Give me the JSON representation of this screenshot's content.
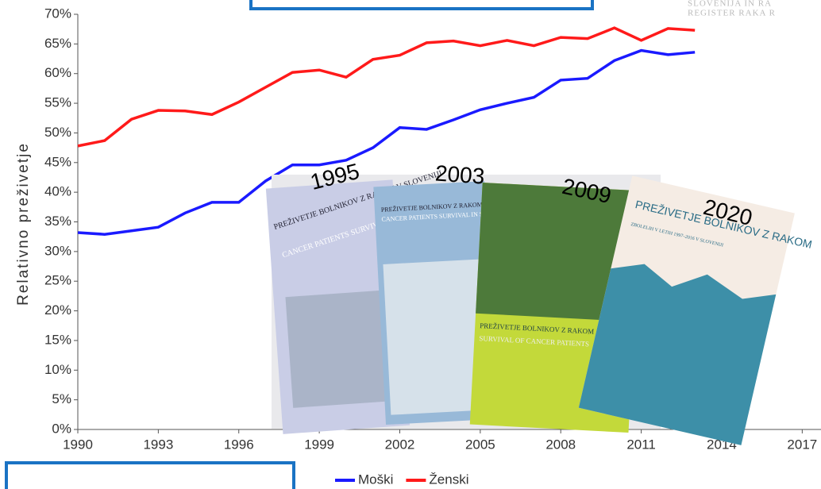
{
  "chart_data": {
    "type": "line",
    "y_label": "Relativno preživetje",
    "watermark": [
      "SLOVENIJA IN RA",
      "REGISTER RAKA R"
    ],
    "x": [
      1990,
      1991,
      1992,
      1993,
      1994,
      1995,
      1996,
      1997,
      1998,
      1999,
      2000,
      2001,
      2002,
      2003,
      2004,
      2005,
      2006,
      2007,
      2008,
      2009,
      2010,
      2011,
      2012,
      2013
    ],
    "series": [
      {
        "name": "Moški",
        "color": "#1a1aff",
        "values": [
          33.2,
          32.9,
          33.5,
          34.1,
          36.5,
          38.3,
          38.3,
          41.9,
          44.6,
          44.6,
          45.4,
          47.5,
          50.9,
          50.6,
          52.2,
          53.9,
          55.0,
          56.0,
          58.9,
          59.2,
          62.2,
          63.9,
          63.2,
          63.6
        ]
      },
      {
        "name": "Ženski",
        "color": "#ff1a1a",
        "values": [
          47.8,
          48.7,
          52.3,
          53.8,
          53.7,
          53.1,
          55.2,
          57.7,
          60.2,
          60.6,
          59.4,
          62.4,
          63.1,
          65.2,
          65.5,
          64.7,
          65.6,
          64.7,
          66.1,
          65.9,
          67.7,
          65.6,
          67.6,
          67.3
        ]
      }
    ],
    "xlim": [
      1990,
      2017.7
    ],
    "xticks": [
      1990,
      1993,
      1996,
      1999,
      2002,
      2005,
      2008,
      2011,
      2014,
      2017
    ],
    "ylim": [
      0,
      70
    ],
    "yticks": [
      {
        "value": 0,
        "label": "0%"
      },
      {
        "value": 5,
        "label": "5%"
      },
      {
        "value": 10,
        "label": "10%"
      },
      {
        "value": 15,
        "label": "15%"
      },
      {
        "value": 20,
        "label": "20%"
      },
      {
        "value": 25,
        "label": "25%"
      },
      {
        "value": 30,
        "label": "30%"
      },
      {
        "value": 35,
        "label": "35%"
      },
      {
        "value": 40,
        "label": "40%"
      },
      {
        "value": 45,
        "label": "45%"
      },
      {
        "value": 50,
        "label": "50%"
      },
      {
        "value": 55,
        "label": "55%"
      },
      {
        "value": 60,
        "label": "60%"
      },
      {
        "value": 65,
        "label": "65%"
      },
      {
        "value": 70,
        "label": "70%"
      }
    ],
    "books": [
      {
        "year": "1995",
        "title": "PREŽIVETJE BOLNIKOV Z RAKOM V SLOVENIJI",
        "subtitle": "CANCER PATIENTS SURVIVAL IN SLOVENIA"
      },
      {
        "year": "2003",
        "title": "PREŽIVETJE BOLNIKOV Z RAKOM V SLOVENIJI",
        "subtitle": "CANCER PATIENTS SURVIVAL IN SLOVENIA"
      },
      {
        "year": "2009",
        "title": "PREŽIVETJE BOLNIKOV Z RAKOM",
        "subtitle": "SURVIVAL OF CANCER PATIENTS"
      },
      {
        "year": "2020",
        "title": "PREŽIVETJE BOLNIKOV Z RAKOM",
        "subtitle": "ZBOLELIH V LETIH 1997–2016 V SLOVENIJI"
      }
    ]
  }
}
